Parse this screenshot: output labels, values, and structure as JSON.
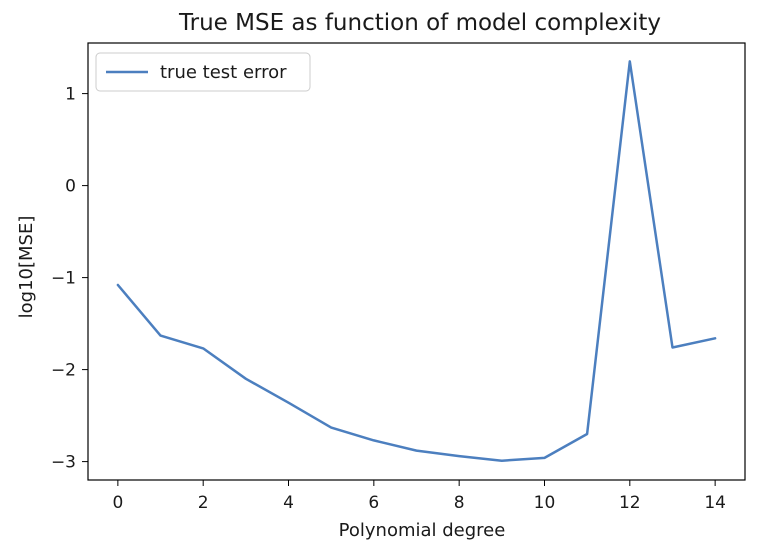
{
  "chart_data": {
    "type": "line",
    "title": "True MSE as function of model complexity",
    "xlabel": "Polynomial degree",
    "ylabel": "log10[MSE]",
    "xlim": [
      -0.7,
      14.7
    ],
    "ylim": [
      -3.2,
      1.55
    ],
    "xticks": [
      0,
      2,
      4,
      6,
      8,
      10,
      12,
      14
    ],
    "yticks": [
      1,
      0,
      -1,
      -2,
      -3
    ],
    "ytick_labels": [
      "1",
      "0",
      "−1",
      "−2",
      "−3"
    ],
    "grid": false,
    "legend_position": "upper-left",
    "series": [
      {
        "name": "true test error",
        "color": "#4c7fbf",
        "x": [
          0,
          1,
          2,
          3,
          4,
          5,
          6,
          7,
          8,
          9,
          10,
          11,
          12,
          13,
          14
        ],
        "y": [
          -1.08,
          -1.63,
          -1.77,
          -2.1,
          -2.36,
          -2.63,
          -2.77,
          -2.88,
          -2.94,
          -2.99,
          -2.96,
          -2.7,
          1.35,
          -1.76,
          -1.66
        ]
      }
    ]
  }
}
